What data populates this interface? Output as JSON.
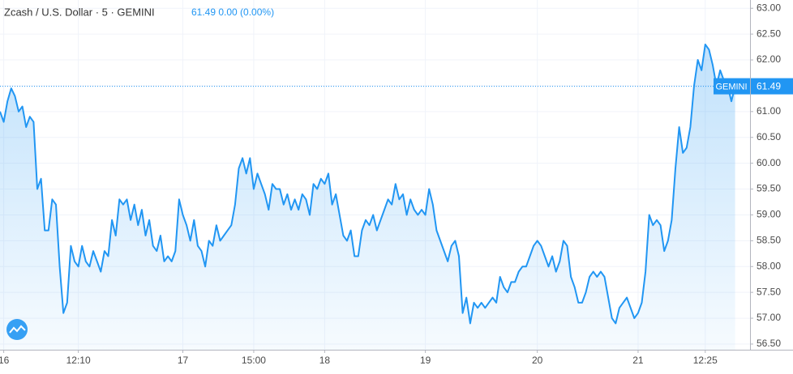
{
  "chart_data": {
    "type": "area",
    "title": "Zcash / U.S. Dollar · 5 · GEMINI",
    "quote": "61.49 0.00 (0.00%)",
    "price_tag": "GEMINI",
    "color": "#2196f3",
    "grid": true,
    "xlim": [
      0,
      201
    ],
    "ylim": [
      56.39,
      63.16
    ],
    "yticks": [
      {
        "value": 56.5,
        "label": "56.50"
      },
      {
        "value": 57,
        "label": "57.00"
      },
      {
        "value": 57.5,
        "label": "57.50"
      },
      {
        "value": 58,
        "label": "58.00"
      },
      {
        "value": 58.5,
        "label": "58.50"
      },
      {
        "value": 59,
        "label": "59.00"
      },
      {
        "value": 59.5,
        "label": "59.50"
      },
      {
        "value": 60,
        "label": "60.00"
      },
      {
        "value": 60.5,
        "label": "60.50"
      },
      {
        "value": 61,
        "label": "61.00"
      },
      {
        "value": 61.5,
        "label": "61.50"
      },
      {
        "value": 62,
        "label": "62.00"
      },
      {
        "value": 62.5,
        "label": "62.50"
      },
      {
        "value": 63,
        "label": "63.00"
      }
    ],
    "xticks": [
      {
        "value": 1,
        "label": "16"
      },
      {
        "value": 21,
        "label": "12:10"
      },
      {
        "value": 49,
        "label": "17"
      },
      {
        "value": 68,
        "label": "15:00"
      },
      {
        "value": 87,
        "label": "18"
      },
      {
        "value": 114,
        "label": "19"
      },
      {
        "value": 144,
        "label": "20"
      },
      {
        "value": 171,
        "label": "21"
      },
      {
        "value": 189,
        "label": "12:25"
      }
    ],
    "values": [
      61.0,
      60.8,
      61.2,
      61.45,
      61.3,
      61.0,
      61.1,
      60.7,
      60.9,
      60.8,
      59.5,
      59.7,
      58.7,
      58.7,
      59.3,
      59.2,
      58.0,
      57.1,
      57.3,
      58.4,
      58.1,
      58.0,
      58.4,
      58.1,
      58.0,
      58.3,
      58.1,
      57.9,
      58.3,
      58.2,
      58.9,
      58.6,
      59.3,
      59.2,
      59.3,
      58.9,
      59.2,
      58.8,
      59.1,
      58.6,
      58.9,
      58.4,
      58.3,
      58.6,
      58.1,
      58.2,
      58.1,
      58.3,
      59.3,
      59.0,
      58.8,
      58.5,
      58.9,
      58.4,
      58.3,
      58.0,
      58.5,
      58.4,
      58.8,
      58.5,
      58.6,
      58.7,
      58.8,
      59.2,
      59.9,
      60.1,
      59.8,
      60.1,
      59.5,
      59.8,
      59.6,
      59.4,
      59.1,
      59.6,
      59.5,
      59.5,
      59.2,
      59.4,
      59.1,
      59.3,
      59.1,
      59.4,
      59.3,
      59.0,
      59.6,
      59.5,
      59.7,
      59.6,
      59.8,
      59.2,
      59.4,
      59.0,
      58.6,
      58.5,
      58.7,
      58.2,
      58.2,
      58.7,
      58.9,
      58.8,
      59.0,
      58.7,
      58.9,
      59.1,
      59.3,
      59.2,
      59.6,
      59.3,
      59.4,
      59.0,
      59.3,
      59.1,
      59.0,
      59.1,
      59.0,
      59.5,
      59.2,
      58.7,
      58.5,
      58.3,
      58.1,
      58.4,
      58.5,
      58.2,
      57.1,
      57.4,
      56.9,
      57.3,
      57.2,
      57.3,
      57.2,
      57.3,
      57.4,
      57.3,
      57.8,
      57.6,
      57.5,
      57.7,
      57.7,
      57.9,
      58.0,
      58.0,
      58.2,
      58.4,
      58.5,
      58.4,
      58.2,
      58.0,
      58.2,
      57.9,
      58.1,
      58.5,
      58.4,
      57.8,
      57.6,
      57.3,
      57.3,
      57.5,
      57.8,
      57.9,
      57.8,
      57.9,
      57.8,
      57.4,
      57.0,
      56.9,
      57.2,
      57.3,
      57.4,
      57.2,
      57.0,
      57.1,
      57.3,
      57.9,
      59.0,
      58.8,
      58.9,
      58.8,
      58.3,
      58.5,
      58.9,
      59.9,
      60.7,
      60.2,
      60.3,
      60.7,
      61.5,
      62.0,
      61.8,
      62.3,
      62.2,
      61.9,
      61.5,
      61.8,
      61.6,
      61.5,
      61.2,
      61.49
    ]
  }
}
